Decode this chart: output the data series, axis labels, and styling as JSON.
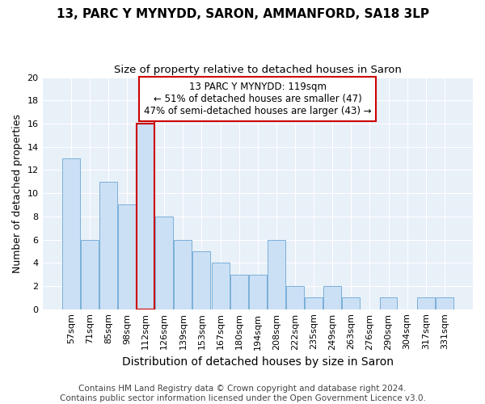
{
  "title": "13, PARC Y MYNYDD, SARON, AMMANFORD, SA18 3LP",
  "subtitle": "Size of property relative to detached houses in Saron",
  "xlabel": "Distribution of detached houses by size in Saron",
  "ylabel": "Number of detached properties",
  "categories": [
    "57sqm",
    "71sqm",
    "85sqm",
    "98sqm",
    "112sqm",
    "126sqm",
    "139sqm",
    "153sqm",
    "167sqm",
    "180sqm",
    "194sqm",
    "208sqm",
    "222sqm",
    "235sqm",
    "249sqm",
    "263sqm",
    "276sqm",
    "290sqm",
    "304sqm",
    "317sqm",
    "331sqm"
  ],
  "values": [
    13,
    6,
    11,
    9,
    16,
    8,
    6,
    5,
    4,
    3,
    3,
    6,
    2,
    1,
    2,
    1,
    0,
    1,
    0,
    1,
    1
  ],
  "bar_color": "#cce0f5",
  "bar_edge_color": "#7ab0d8",
  "highlight_index": 4,
  "highlight_edge_color": "#cc0000",
  "annotation_box_text": "13 PARC Y MYNYDD: 119sqm\n← 51% of detached houses are smaller (47)\n47% of semi-detached houses are larger (43) →",
  "annotation_box_color": "white",
  "annotation_box_edge_color": "#cc0000",
  "vline_color": "#cc0000",
  "vline_x": 4,
  "ylim": [
    0,
    20
  ],
  "yticks": [
    0,
    2,
    4,
    6,
    8,
    10,
    12,
    14,
    16,
    18,
    20
  ],
  "background_color": "#e8f0f8",
  "grid_color": "#ffffff",
  "footer_text": "Contains HM Land Registry data © Crown copyright and database right 2024.\nContains public sector information licensed under the Open Government Licence v3.0.",
  "title_fontsize": 11,
  "subtitle_fontsize": 9.5,
  "xlabel_fontsize": 10,
  "ylabel_fontsize": 9,
  "tick_fontsize": 8,
  "annotation_fontsize": 8.5,
  "footer_fontsize": 7.5
}
